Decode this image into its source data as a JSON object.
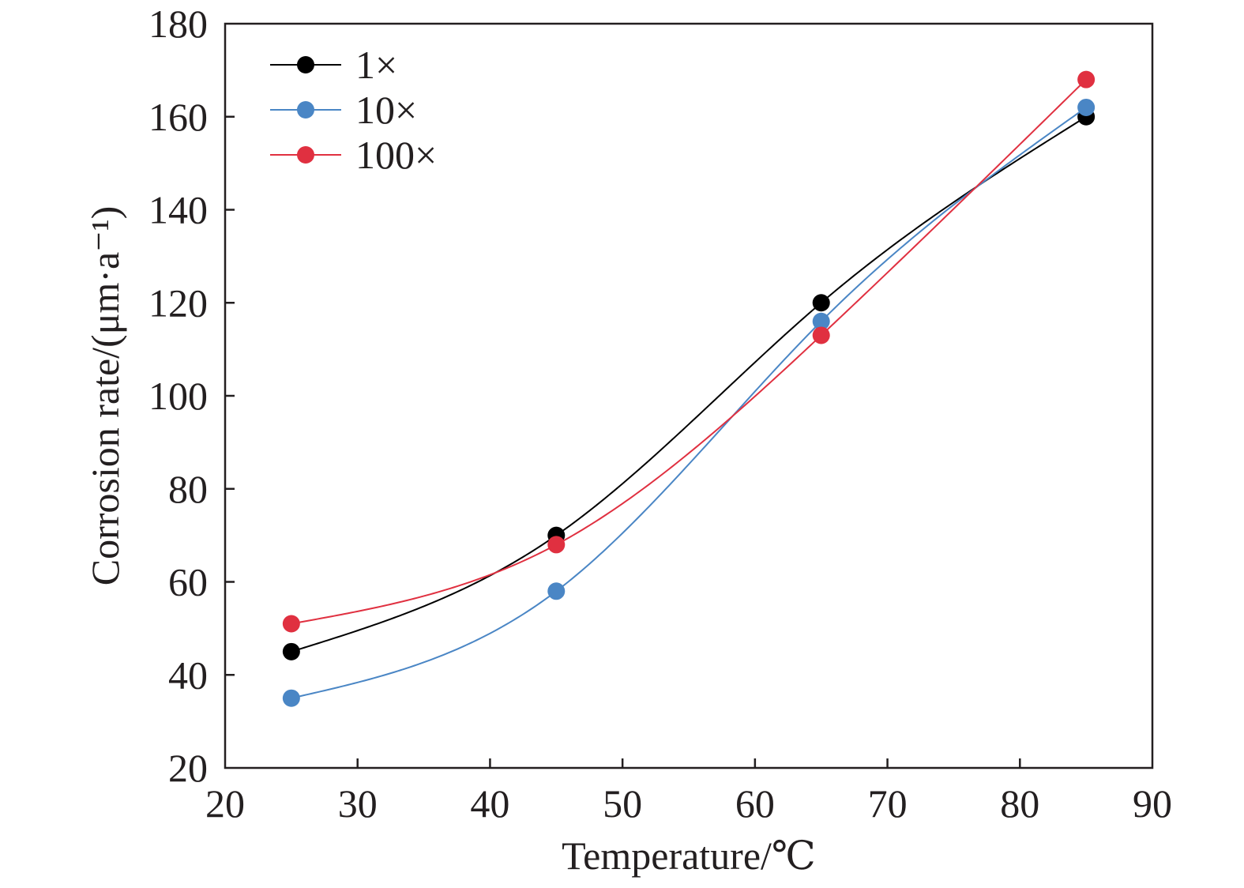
{
  "chart_data": {
    "type": "line",
    "title": "",
    "xlabel": "Temperature/℃",
    "ylabel": "Corrosion rate/(μm·a⁻¹)",
    "xlim": [
      20,
      90
    ],
    "ylim": [
      20,
      180
    ],
    "xticks": [
      20,
      30,
      40,
      50,
      60,
      70,
      80,
      90
    ],
    "yticks": [
      20,
      40,
      60,
      80,
      100,
      120,
      140,
      160,
      180
    ],
    "grid": false,
    "legend_position": "top-left",
    "x": [
      25,
      45,
      65,
      85
    ],
    "series": [
      {
        "name": "1×",
        "color": "#000000",
        "values": [
          45,
          70,
          120,
          160
        ]
      },
      {
        "name": "10×",
        "color": "#4a86c5",
        "values": [
          35,
          58,
          116,
          162
        ]
      },
      {
        "name": "100×",
        "color": "#e03040",
        "values": [
          51,
          68,
          113,
          168
        ]
      }
    ]
  }
}
